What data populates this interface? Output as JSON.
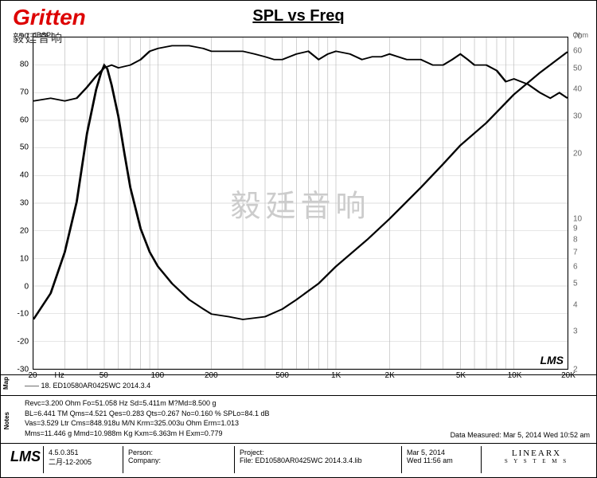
{
  "logo": "Gritten",
  "logo_sub": "毅廷音响",
  "title": "SPL vs Freq",
  "ylabel_left": "dBSPL",
  "ylabel_right": "Ohm",
  "watermark": "毅廷音响",
  "plot_tag": "LMS",
  "axes": {
    "y_left": {
      "min": -30,
      "max": 90,
      "ticks": [
        -30,
        -20,
        -10,
        0,
        10,
        20,
        30,
        40,
        50,
        60,
        70,
        80,
        90
      ]
    },
    "y_right": {
      "min": 2,
      "max": 70,
      "ticks": [
        2,
        3,
        4,
        5,
        6,
        7,
        8,
        9,
        10,
        20,
        30,
        40,
        50,
        60,
        70
      ]
    },
    "x": {
      "min": 20,
      "max": 20000,
      "ticks": [
        {
          "v": 20,
          "l": "20"
        },
        {
          "v": 50,
          "l": "50"
        },
        {
          "v": 100,
          "l": "100"
        },
        {
          "v": 200,
          "l": "200"
        },
        {
          "v": 500,
          "l": "500"
        },
        {
          "v": 1000,
          "l": "1K"
        },
        {
          "v": 2000,
          "l": "2K"
        },
        {
          "v": 5000,
          "l": "5K"
        },
        {
          "v": 10000,
          "l": "10K"
        },
        {
          "v": 20000,
          "l": "20K"
        }
      ],
      "xlabel": "Hz"
    },
    "grid_color": "#bbb",
    "curve_color": "#000",
    "curve_width": 1.4
  },
  "spl_curve": [
    [
      20,
      67
    ],
    [
      25,
      68
    ],
    [
      30,
      67
    ],
    [
      35,
      68
    ],
    [
      40,
      72
    ],
    [
      45,
      76
    ],
    [
      50,
      79
    ],
    [
      55,
      80
    ],
    [
      60,
      79
    ],
    [
      70,
      80
    ],
    [
      80,
      82
    ],
    [
      90,
      85
    ],
    [
      100,
      86
    ],
    [
      120,
      87
    ],
    [
      150,
      87
    ],
    [
      180,
      86
    ],
    [
      200,
      85
    ],
    [
      250,
      85
    ],
    [
      300,
      85
    ],
    [
      350,
      84
    ],
    [
      400,
      83
    ],
    [
      450,
      82
    ],
    [
      500,
      82
    ],
    [
      600,
      84
    ],
    [
      700,
      85
    ],
    [
      800,
      82
    ],
    [
      900,
      84
    ],
    [
      1000,
      85
    ],
    [
      1200,
      84
    ],
    [
      1400,
      82
    ],
    [
      1600,
      83
    ],
    [
      1800,
      83
    ],
    [
      2000,
      84
    ],
    [
      2500,
      82
    ],
    [
      3000,
      82
    ],
    [
      3500,
      80
    ],
    [
      4000,
      80
    ],
    [
      4500,
      82
    ],
    [
      5000,
      84
    ],
    [
      5500,
      82
    ],
    [
      6000,
      80
    ],
    [
      7000,
      80
    ],
    [
      8000,
      78
    ],
    [
      9000,
      74
    ],
    [
      10000,
      75
    ],
    [
      12000,
      73
    ],
    [
      14000,
      70
    ],
    [
      16000,
      68
    ],
    [
      18000,
      70
    ],
    [
      20000,
      68
    ]
  ],
  "imp_curve": [
    [
      20,
      3.4
    ],
    [
      25,
      4.5
    ],
    [
      30,
      7
    ],
    [
      35,
      12
    ],
    [
      40,
      25
    ],
    [
      45,
      40
    ],
    [
      48,
      48
    ],
    [
      50,
      52
    ],
    [
      52,
      50
    ],
    [
      55,
      42
    ],
    [
      60,
      30
    ],
    [
      65,
      20
    ],
    [
      70,
      14
    ],
    [
      80,
      9
    ],
    [
      90,
      7
    ],
    [
      100,
      6
    ],
    [
      120,
      5
    ],
    [
      150,
      4.2
    ],
    [
      180,
      3.8
    ],
    [
      200,
      3.6
    ],
    [
      250,
      3.5
    ],
    [
      300,
      3.4
    ],
    [
      400,
      3.5
    ],
    [
      500,
      3.8
    ],
    [
      600,
      4.2
    ],
    [
      800,
      5
    ],
    [
      1000,
      6
    ],
    [
      1500,
      8
    ],
    [
      2000,
      10
    ],
    [
      3000,
      14
    ],
    [
      4000,
      18
    ],
    [
      5000,
      22
    ],
    [
      7000,
      28
    ],
    [
      10000,
      38
    ],
    [
      14000,
      48
    ],
    [
      20000,
      60
    ]
  ],
  "map": {
    "side": "Map",
    "legend": "—— 18. ED10580AR0425WC   2014.3.4"
  },
  "notes": {
    "side": "Notes",
    "l1": "Revc=3.200 Ohm  Fo=51.058 Hz  Sd=5.411m M?Md=8.500 g",
    "l2": "BL=6.441 TM  Qms=4.521  Qes=0.283  Qts=0.267  No=0.160 %  SPLo=84.1 dB",
    "l3": "Vas=3.529 Ltr  Cms=848.918u M/N  Krm=325.003u Ohm  Erm=1.013",
    "l4": "Mms=11.446 g  Mmd=10.988m Kg  Kxm=6.363m H  Exm=0.779",
    "dm": "Data Measured: Mar  5, 2014  Wed 10:52 am"
  },
  "footer": {
    "lms": "LMS",
    "ver": "4.5.0.351",
    "date": "二月-12-2005",
    "person": "Person:",
    "company": "Company:",
    "project": "Project:",
    "file": "File: ED10580AR0425WC  2014.3.4.lib",
    "mdate": "Mar  5, 2014",
    "mtime": "Wed 11:56 am",
    "lx": "LINEARX",
    "lxs": "S Y S T E M S"
  }
}
